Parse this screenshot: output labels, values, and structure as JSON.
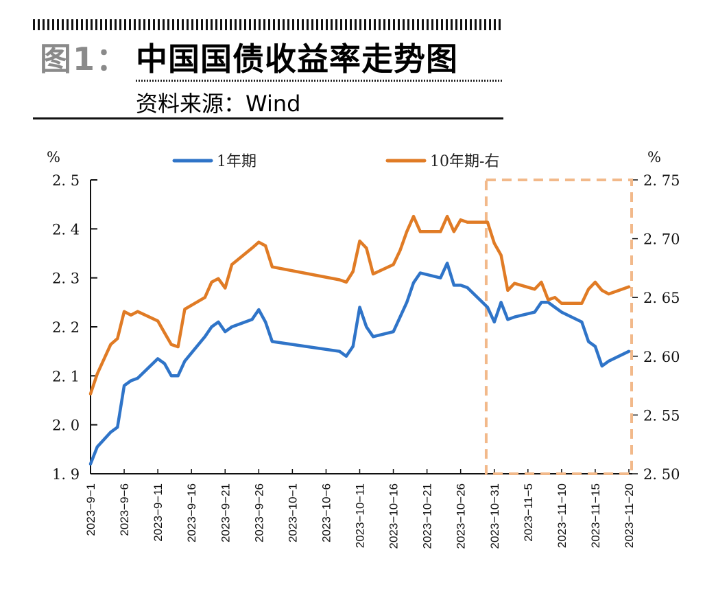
{
  "header": {
    "figure_label": "图1：",
    "title": "中国国债收益率走势图",
    "source": "资料来源：Wind"
  },
  "colors": {
    "series_1y": "#2f74c8",
    "series_10y": "#e07b25",
    "highlight_box": "#f2b98a",
    "axis": "#111111"
  },
  "chart_data": {
    "type": "line",
    "title": "中国国债收益率走势图",
    "source": "Wind",
    "xlabel": "",
    "ylabel_left": "%",
    "ylabel_right": "%",
    "ylim_left": [
      1.9,
      2.5
    ],
    "ylim_right": [
      2.5,
      2.75
    ],
    "yticks_left": [
      "1.9",
      "2.0",
      "2.1",
      "2.2",
      "2.3",
      "2.4",
      "2.5"
    ],
    "yticks_right": [
      "2.50",
      "2.55",
      "2.60",
      "2.65",
      "2.70",
      "2.75"
    ],
    "x_tick_labels": [
      "2023-9-1",
      "2023-9-6",
      "2023-9-11",
      "2023-9-16",
      "2023-9-21",
      "2023-9-26",
      "2023-10-1",
      "2023-10-6",
      "2023-10-11",
      "2023-10-16",
      "2023-10-21",
      "2023-10-26",
      "2023-10-31",
      "2023-11-5",
      "2023-11-10",
      "2023-11-15",
      "2023-11-20"
    ],
    "legend": [
      "1年期",
      "10年期-右"
    ],
    "legend_position": "top",
    "grid": false,
    "highlight_region": {
      "x_start": "2023-10-30",
      "x_end": "2023-11-20",
      "style": "dashed box"
    },
    "series": [
      {
        "name": "1年期",
        "axis": "left",
        "x": [
          "2023-9-1",
          "2023-9-2",
          "2023-9-4",
          "2023-9-5",
          "2023-9-6",
          "2023-9-7",
          "2023-9-8",
          "2023-9-11",
          "2023-9-12",
          "2023-9-13",
          "2023-9-14",
          "2023-9-15",
          "2023-9-18",
          "2023-9-19",
          "2023-9-20",
          "2023-9-21",
          "2023-9-22",
          "2023-9-25",
          "2023-9-26",
          "2023-9-27",
          "2023-9-28",
          "2023-10-8",
          "2023-10-9",
          "2023-10-10",
          "2023-10-11",
          "2023-10-12",
          "2023-10-13",
          "2023-10-16",
          "2023-10-17",
          "2023-10-18",
          "2023-10-19",
          "2023-10-20",
          "2023-10-23",
          "2023-10-24",
          "2023-10-25",
          "2023-10-26",
          "2023-10-27",
          "2023-10-30",
          "2023-10-31",
          "2023-11-1",
          "2023-11-2",
          "2023-11-3",
          "2023-11-6",
          "2023-11-7",
          "2023-11-8",
          "2023-11-9",
          "2023-11-10",
          "2023-11-13",
          "2023-11-14",
          "2023-11-15",
          "2023-11-16",
          "2023-11-17",
          "2023-11-20"
        ],
        "values": [
          1.92,
          1.955,
          1.985,
          1.995,
          2.08,
          2.09,
          2.095,
          2.135,
          2.125,
          2.1,
          2.1,
          2.13,
          2.18,
          2.2,
          2.21,
          2.19,
          2.2,
          2.215,
          2.235,
          2.21,
          2.17,
          2.15,
          2.14,
          2.16,
          2.24,
          2.2,
          2.18,
          2.19,
          2.22,
          2.25,
          2.29,
          2.31,
          2.3,
          2.33,
          2.285,
          2.285,
          2.28,
          2.24,
          2.21,
          2.25,
          2.215,
          2.22,
          2.23,
          2.25,
          2.25,
          2.24,
          2.23,
          2.21,
          2.17,
          2.16,
          2.12,
          2.13,
          2.15
        ]
      },
      {
        "name": "10年期-右",
        "axis": "right",
        "x": [
          "2023-9-1",
          "2023-9-2",
          "2023-9-4",
          "2023-9-5",
          "2023-9-6",
          "2023-9-7",
          "2023-9-8",
          "2023-9-11",
          "2023-9-12",
          "2023-9-13",
          "2023-9-14",
          "2023-9-15",
          "2023-9-18",
          "2023-9-19",
          "2023-9-20",
          "2023-9-21",
          "2023-9-22",
          "2023-9-25",
          "2023-9-26",
          "2023-9-27",
          "2023-9-28",
          "2023-10-8",
          "2023-10-9",
          "2023-10-10",
          "2023-10-11",
          "2023-10-12",
          "2023-10-13",
          "2023-10-16",
          "2023-10-17",
          "2023-10-18",
          "2023-10-19",
          "2023-10-20",
          "2023-10-23",
          "2023-10-24",
          "2023-10-25",
          "2023-10-26",
          "2023-10-27",
          "2023-10-30",
          "2023-10-31",
          "2023-11-1",
          "2023-11-2",
          "2023-11-3",
          "2023-11-6",
          "2023-11-7",
          "2023-11-8",
          "2023-11-9",
          "2023-11-10",
          "2023-11-13",
          "2023-11-14",
          "2023-11-15",
          "2023-11-16",
          "2023-11-17",
          "2023-11-20"
        ],
        "values": [
          2.568,
          2.585,
          2.61,
          2.615,
          2.638,
          2.635,
          2.638,
          2.63,
          2.62,
          2.61,
          2.608,
          2.64,
          2.65,
          2.663,
          2.666,
          2.658,
          2.678,
          2.692,
          2.697,
          2.694,
          2.676,
          2.665,
          2.663,
          2.672,
          2.698,
          2.692,
          2.67,
          2.678,
          2.69,
          2.706,
          2.719,
          2.706,
          2.706,
          2.719,
          2.706,
          2.716,
          2.714,
          2.714,
          2.696,
          2.686,
          2.656,
          2.662,
          2.657,
          2.663,
          2.648,
          2.65,
          2.645,
          2.645,
          2.657,
          2.663,
          2.656,
          2.653,
          2.659
        ]
      }
    ]
  }
}
